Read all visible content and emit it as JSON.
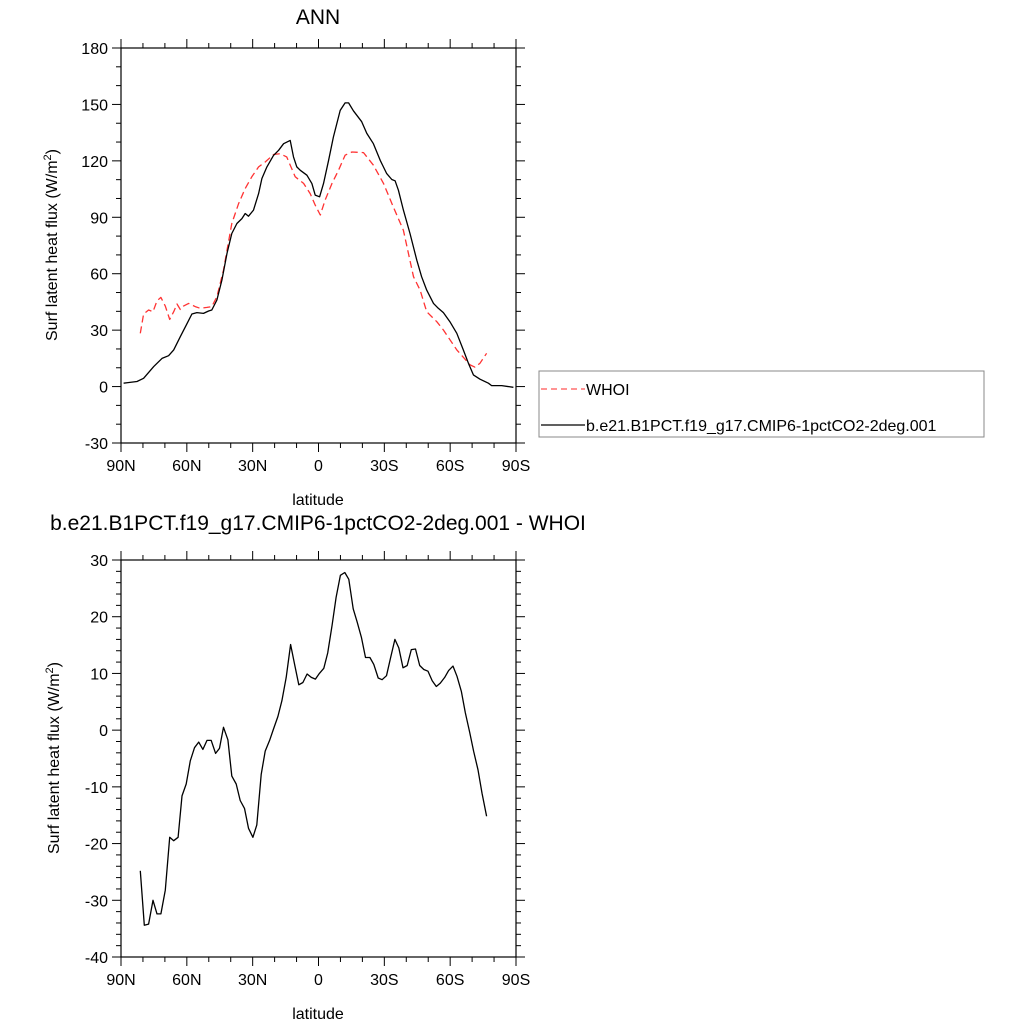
{
  "chart_data": [
    {
      "type": "line",
      "title": "ANN",
      "xlabel": "latitude",
      "ylabel": "Surf latent heat flux (W/m²)",
      "ylabel_main": "Surf latent heat flux (W/m",
      "ylabel_sup": "2",
      "ylabel_close": ")",
      "xlim": [
        90,
        -90
      ],
      "ylim": [
        -30,
        180
      ],
      "xticks": [
        90,
        60,
        30,
        0,
        -30,
        -60,
        -90
      ],
      "xtick_labels": [
        "90N",
        "60N",
        "30N",
        "0",
        "30S",
        "60S",
        "90S"
      ],
      "yticks": [
        -30,
        0,
        30,
        60,
        90,
        120,
        150,
        180
      ],
      "ytick_labels": [
        "-30",
        "0",
        "30",
        "60",
        "90",
        "120",
        "150",
        "180"
      ],
      "grid": false,
      "legend_placement": "outside-right",
      "series": [
        {
          "name": "WHOI",
          "color": "#ff0000",
          "dash": "dashed",
          "x": [
            81.2,
            79.7,
            77.4,
            75.4,
            73.6,
            71.8,
            69.8,
            67.8,
            66.0,
            64.5,
            63.0,
            61.5,
            59.2,
            56.2,
            53.9,
            50.8,
            48.6,
            46.3,
            43.3,
            41.7,
            39.5,
            36.4,
            33.4,
            30.4,
            27.3,
            24.3,
            20.5,
            17.5,
            14.5,
            10.6,
            6.8,
            3.8,
            1.5,
            -0.8,
            -3.0,
            -6.1,
            -9.1,
            -12.1,
            -15.2,
            -20.5,
            -25.0,
            -29.6,
            -34.1,
            -38.7,
            -43.3,
            -46.3,
            -49.3,
            -53.9,
            -56.9,
            -63.0,
            -69.1,
            -71.3,
            -73.6,
            -76.6
          ],
          "y": [
            28.3,
            38.6,
            40.7,
            39.8,
            45.6,
            47.4,
            42.8,
            35.7,
            39.8,
            43.9,
            41.0,
            42.8,
            44.2,
            42.5,
            41.6,
            42.1,
            42.5,
            47.8,
            61.9,
            72.5,
            86.7,
            97.3,
            105.3,
            111.5,
            116.8,
            119.4,
            123.4,
            123.8,
            122.1,
            111.5,
            108.0,
            102.6,
            96.5,
            91.2,
            99.1,
            107.9,
            115.0,
            123.0,
            124.7,
            124.4,
            117.7,
            108.0,
            95.5,
            83.1,
            58.4,
            51.3,
            39.8,
            34.5,
            30.1,
            19.5,
            11.5,
            10.3,
            12.4,
            17.7
          ]
        },
        {
          "name": "b.e21.B1PCT.f19_g17.CMIP6-1pctCO2-2deg.001",
          "color": "#000000",
          "dash": "solid",
          "x": [
            88.8,
            82.7,
            79.7,
            75.1,
            71.3,
            68.3,
            66.0,
            63.0,
            59.9,
            57.7,
            55.4,
            52.4,
            50.1,
            48.6,
            46.3,
            44.0,
            41.7,
            39.5,
            37.2,
            34.9,
            33.4,
            31.9,
            29.6,
            27.3,
            25.8,
            23.5,
            20.5,
            18.2,
            15.9,
            12.9,
            11.4,
            9.9,
            8.3,
            5.3,
            3.0,
            1.5,
            -0.5,
            -2.3,
            -4.6,
            -6.8,
            -9.9,
            -12.1,
            -13.7,
            -15.9,
            -19.7,
            -22.0,
            -25.0,
            -28.1,
            -31.1,
            -33.4,
            -34.9,
            -36.4,
            -38.7,
            -41.7,
            -44.8,
            -47.0,
            -49.3,
            -52.4,
            -54.6,
            -56.9,
            -59.9,
            -63.0,
            -66.0,
            -68.3,
            -70.6,
            -73.6,
            -77.4,
            -78.9,
            -83.5,
            -88.8
          ],
          "y": [
            1.8,
            2.7,
            4.4,
            10.6,
            15.0,
            16.4,
            19.5,
            26.5,
            33.6,
            38.6,
            39.3,
            38.9,
            40.2,
            40.7,
            46.0,
            56.6,
            70.8,
            81.4,
            86.7,
            89.3,
            92.0,
            90.6,
            93.8,
            102.6,
            110.6,
            116.8,
            122.9,
            125.6,
            129.1,
            130.9,
            122.1,
            116.8,
            115.0,
            112.4,
            107.9,
            101.8,
            100.9,
            107.9,
            120.3,
            132.7,
            146.8,
            150.8,
            150.8,
            146.6,
            140.8,
            134.6,
            129.1,
            120.3,
            113.2,
            110.1,
            109.4,
            104.4,
            93.8,
            81.4,
            67.2,
            58.4,
            51.3,
            44.2,
            41.6,
            39.3,
            34.5,
            28.3,
            19.5,
            12.4,
            6.2,
            3.9,
            1.8,
            0.5,
            0.5,
            -0.4
          ]
        }
      ]
    },
    {
      "type": "line",
      "title": "b.e21.B1PCT.f19_g17.CMIP6-1pctCO2-2deg.001 - WHOI",
      "xlabel": "latitude",
      "ylabel": "Surf latent heat flux (W/m²)",
      "ylabel_main": "Surf latent heat flux (W/m",
      "ylabel_sup": "2",
      "ylabel_close": ")",
      "xlim": [
        90,
        -90
      ],
      "ylim": [
        -40,
        30
      ],
      "xticks": [
        90,
        60,
        30,
        0,
        -30,
        -60,
        -90
      ],
      "xtick_labels": [
        "90N",
        "60N",
        "30N",
        "0",
        "30S",
        "60S",
        "90S"
      ],
      "yticks": [
        -40,
        -30,
        -20,
        -10,
        0,
        10,
        20,
        30
      ],
      "ytick_labels": [
        "-40",
        "-30",
        "-20",
        "-10",
        "0",
        "10",
        "20",
        "30"
      ],
      "grid": false,
      "series": [
        {
          "color": "#000000",
          "dash": "solid",
          "x": [
            81.2,
            79.4,
            77.4,
            75.4,
            73.6,
            71.8,
            69.8,
            67.8,
            66.0,
            64.0,
            62.2,
            60.3,
            58.4,
            56.5,
            54.6,
            52.7,
            50.8,
            48.9,
            46.9,
            45.1,
            43.3,
            41.3,
            39.5,
            37.5,
            35.7,
            33.7,
            31.9,
            29.9,
            28.1,
            26.1,
            24.3,
            22.3,
            20.5,
            18.5,
            16.7,
            14.7,
            12.7,
            10.9,
            9.0,
            7.1,
            5.2,
            3.3,
            1.4,
            -0.4,
            -2.4,
            -4.2,
            -6.2,
            -8.0,
            -10.0,
            -12.0,
            -13.8,
            -15.8,
            -17.6,
            -19.6,
            -21.4,
            -23.4,
            -25.2,
            -27.2,
            -29.0,
            -31.0,
            -32.8,
            -34.8,
            -36.6,
            -38.5,
            -40.4,
            -42.3,
            -44.2,
            -46.1,
            -48.0,
            -49.9,
            -51.8,
            -53.7,
            -55.5,
            -57.5,
            -59.3,
            -61.3,
            -63.1,
            -65.1,
            -66.9,
            -68.9,
            -70.7,
            -72.7,
            -74.5,
            -76.6
          ],
          "y": [
            -24.8,
            -34.4,
            -34.2,
            -30.0,
            -32.4,
            -32.4,
            -28.2,
            -18.9,
            -19.5,
            -18.9,
            -11.6,
            -9.5,
            -5.4,
            -3.1,
            -2.1,
            -3.4,
            -1.8,
            -1.8,
            -4.1,
            -3.2,
            0.5,
            -1.7,
            -8.1,
            -9.5,
            -12.4,
            -13.8,
            -17.3,
            -18.9,
            -16.7,
            -7.8,
            -3.7,
            -1.8,
            0.2,
            2.4,
            5.2,
            9.3,
            15.1,
            11.6,
            8.0,
            8.4,
            9.9,
            9.3,
            9.0,
            10.0,
            10.9,
            13.6,
            18.5,
            23.4,
            27.3,
            27.8,
            26.6,
            21.4,
            19.1,
            16.3,
            12.8,
            12.8,
            11.6,
            9.2,
            8.9,
            9.6,
            12.7,
            16.0,
            14.5,
            11.0,
            11.4,
            14.2,
            14.3,
            11.4,
            10.7,
            10.4,
            8.7,
            7.7,
            8.3,
            9.3,
            10.5,
            11.3,
            9.5,
            6.8,
            3.1,
            -0.4,
            -3.7,
            -7.0,
            -11.1,
            -15.2
          ]
        }
      ]
    }
  ]
}
